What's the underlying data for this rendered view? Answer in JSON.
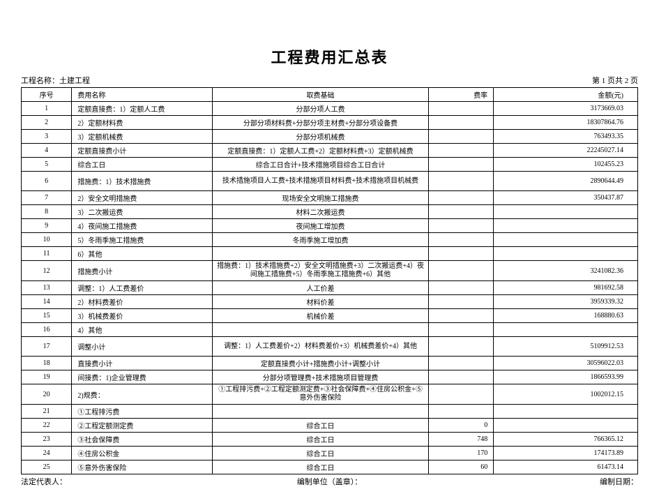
{
  "title": "工程费用汇总表",
  "project_label": "工程名称：土建工程",
  "page_info": "第  1  页共  2  页",
  "columns": {
    "seq": "序号",
    "name": "费用名称",
    "basis": "取费基础",
    "rate": "费率",
    "amount": "金额(元)"
  },
  "rows": [
    {
      "seq": "1",
      "name": "定额直接费：1）定额人工费",
      "basis": "分部分项人工费",
      "rate": "",
      "amount": "3173669.03"
    },
    {
      "seq": "2",
      "name": "2）定额材料费",
      "basis": "分部分项材料费+分部分项主材费+分部分项设备费",
      "rate": "",
      "amount": "18307864.76"
    },
    {
      "seq": "3",
      "name": "3）定额机械费",
      "basis": "分部分项机械费",
      "rate": "",
      "amount": "763493.35"
    },
    {
      "seq": "4",
      "name": "定额直接费小计",
      "basis": "定额直接费：1）定额人工费+2）定额材料费+3）定额机械费",
      "rate": "",
      "amount": "22245027.14"
    },
    {
      "seq": "5",
      "name": "综合工日",
      "basis": "综合工日合计+技术措施项目综合工日合计",
      "rate": "",
      "amount": "102455.23"
    },
    {
      "seq": "6",
      "name": "措施费：1）技术措施费",
      "basis": "技术措施项目人工费+技术措施项目材料费+技术措施项目机械费",
      "rate": "",
      "amount": "2890644.49",
      "tall": true
    },
    {
      "seq": "7",
      "name": "2）安全文明措施费",
      "basis": "现场安全文明施工措施费",
      "rate": "",
      "amount": "350437.87"
    },
    {
      "seq": "8",
      "name": "3）二次搬运费",
      "basis": "材料二次搬运费",
      "rate": "",
      "amount": ""
    },
    {
      "seq": "9",
      "name": "4）夜间施工措施费",
      "basis": "夜间施工增加费",
      "rate": "",
      "amount": ""
    },
    {
      "seq": "10",
      "name": "5）冬雨季施工措施费",
      "basis": "冬雨季施工增加费",
      "rate": "",
      "amount": ""
    },
    {
      "seq": "11",
      "name": "6）其他",
      "basis": "",
      "rate": "",
      "amount": ""
    },
    {
      "seq": "12",
      "name": "措施费小计",
      "basis": "措施费：1）技术措施费+2）安全文明措施费+3）二次搬运费+4）夜间施工措施费+5）冬雨季施工措施费+6）其他",
      "rate": "",
      "amount": "3241082.36",
      "tall": true
    },
    {
      "seq": "13",
      "name": "调整：1）人工费差价",
      "basis": "人工价差",
      "rate": "",
      "amount": "981692.58"
    },
    {
      "seq": "14",
      "name": "2）材料费差价",
      "basis": "材料价差",
      "rate": "",
      "amount": "3959339.32"
    },
    {
      "seq": "15",
      "name": "3）机械费差价",
      "basis": "机械价差",
      "rate": "",
      "amount": "168880.63"
    },
    {
      "seq": "16",
      "name": "4）其他",
      "basis": "",
      "rate": "",
      "amount": ""
    },
    {
      "seq": "17",
      "name": "调整小计",
      "basis": "调整：1）人工费差价+2）材料费差价+3）机械费差价+4）其他",
      "rate": "",
      "amount": "5109912.53",
      "tall": true
    },
    {
      "seq": "18",
      "name": "直接费小计",
      "basis": "定额直接费小计+措施费小计+调整小计",
      "rate": "",
      "amount": "30596022.03"
    },
    {
      "seq": "19",
      "name": "间接费：1)企业管理费",
      "basis": "分部分项管理费+技术措施项目管理费",
      "rate": "",
      "amount": "1866593.99"
    },
    {
      "seq": "20",
      "name": "2)规费：",
      "basis": "①工程排污费+②工程定额测定费+③社会保障费+④住房公积金+⑤意外伤害保险",
      "rate": "",
      "amount": "1002012.15",
      "tall": true
    },
    {
      "seq": "21",
      "name": "①工程排污费",
      "basis": "",
      "rate": "",
      "amount": ""
    },
    {
      "seq": "22",
      "name": "②工程定额测定费",
      "basis": "综合工日",
      "rate": "0",
      "amount": ""
    },
    {
      "seq": "23",
      "name": "③社会保障费",
      "basis": "综合工日",
      "rate": "748",
      "amount": "766365.12"
    },
    {
      "seq": "24",
      "name": "④住房公积金",
      "basis": "综合工日",
      "rate": "170",
      "amount": "174173.89"
    },
    {
      "seq": "25",
      "name": "⑤意外伤害保险",
      "basis": "综合工日",
      "rate": "60",
      "amount": "61473.14"
    }
  ],
  "footer": {
    "left": "法定代表人：",
    "center": "编制单位（盖章）：",
    "right": "编制日期："
  },
  "colors": {
    "text": "#000000",
    "background": "#ffffff",
    "border": "#000000"
  }
}
